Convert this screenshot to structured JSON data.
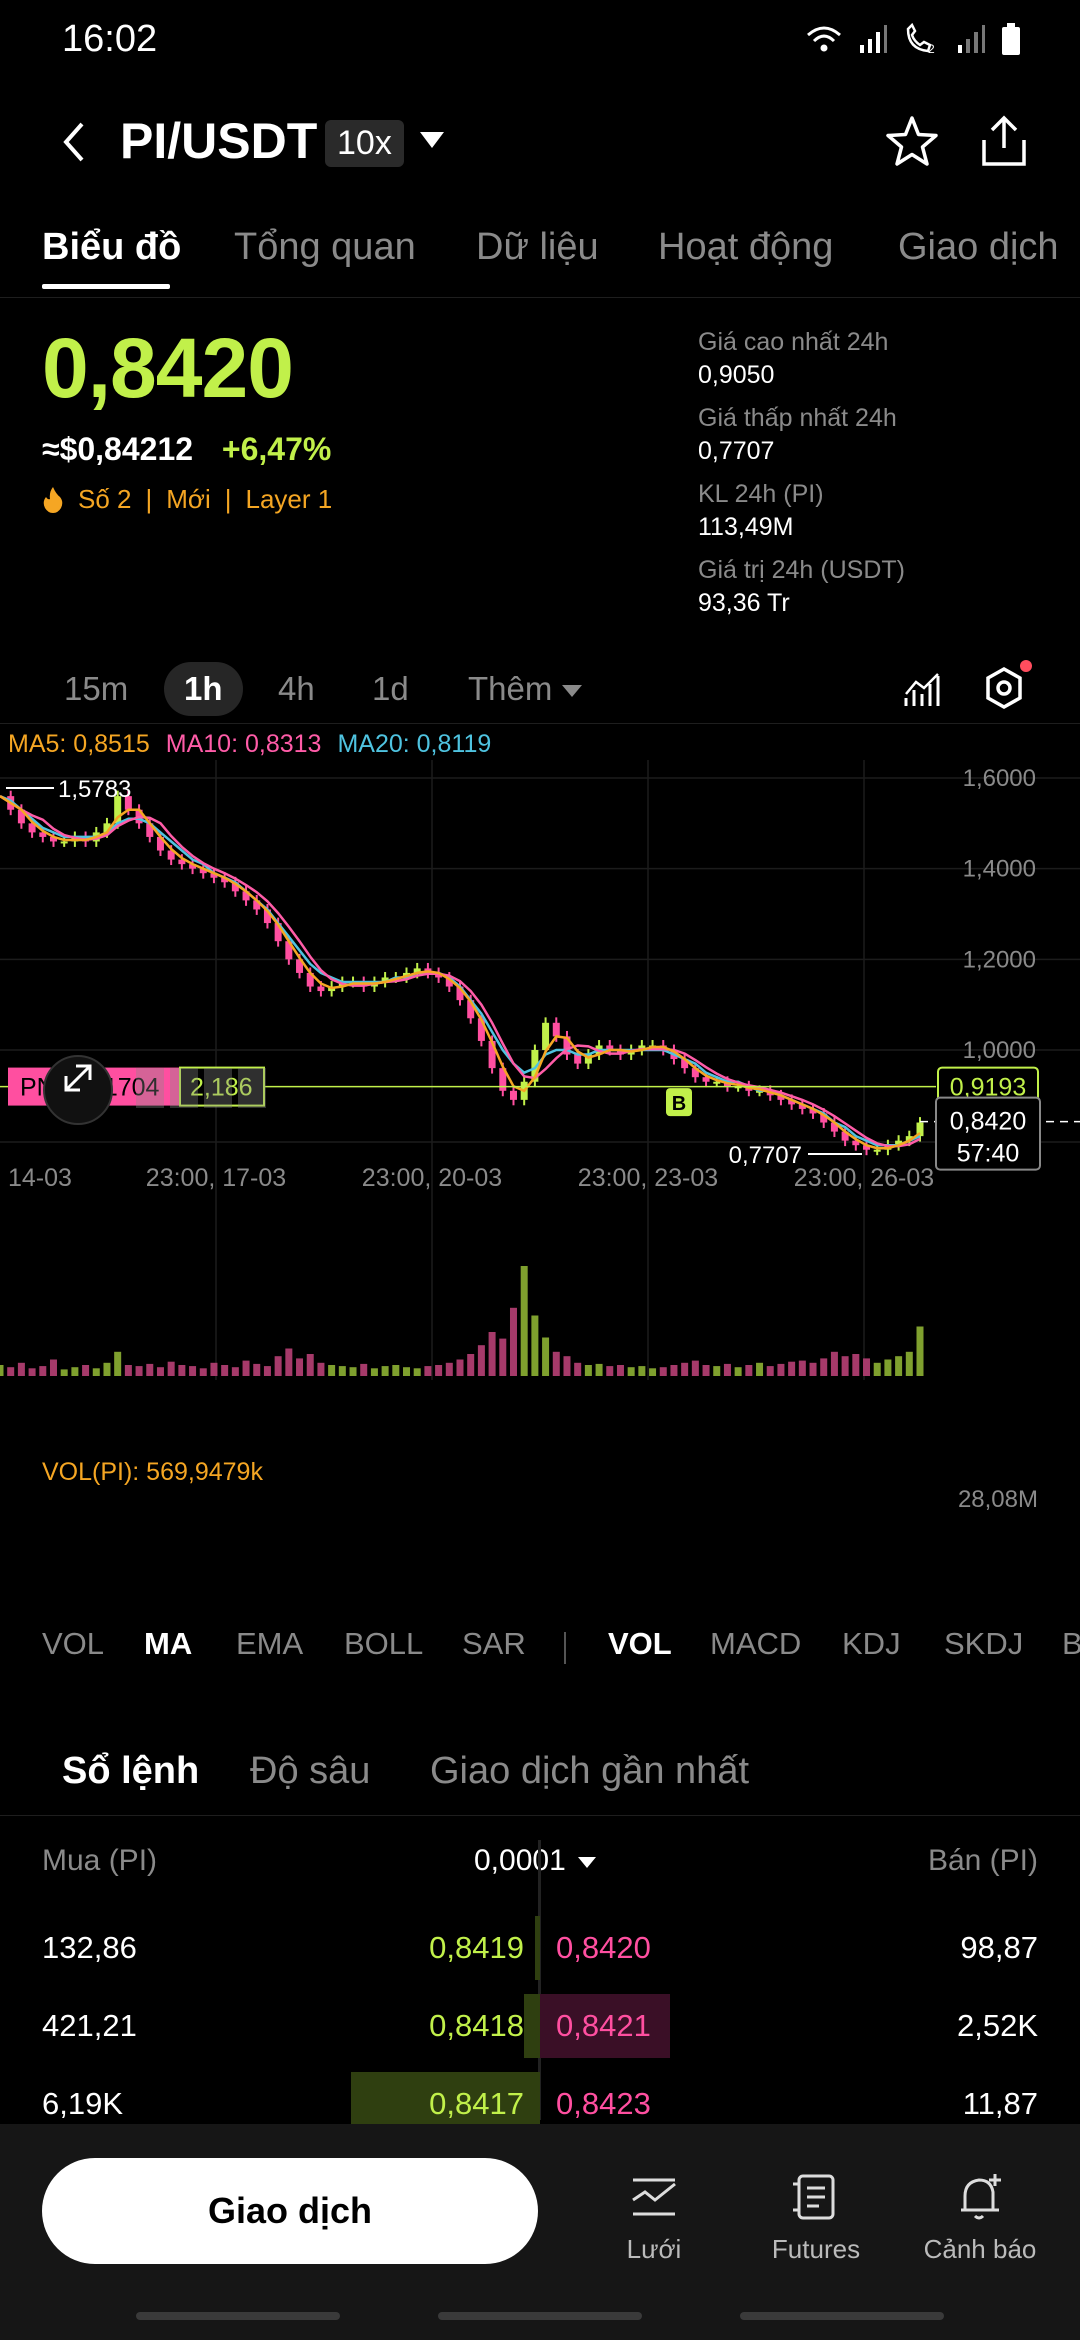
{
  "status": {
    "time": "16:02"
  },
  "header": {
    "pair": "PI/USDT",
    "leverage": "10x"
  },
  "tabs": [
    "Biểu đồ",
    "Tổng quan",
    "Dữ liệu",
    "Hoạt động",
    "Giao dịch"
  ],
  "price": {
    "last": "0,8420",
    "usd": "≈$0,84212",
    "change": "+6,47%",
    "tags": [
      "Số 2",
      "|",
      "Mới",
      "|",
      "Layer 1"
    ]
  },
  "stats": [
    {
      "label": "Giá cao nhất 24h",
      "value": "0,9050"
    },
    {
      "label": "Giá thấp nhất 24h",
      "value": "0,7707"
    },
    {
      "label": "KL 24h (PI)",
      "value": "113,49M"
    },
    {
      "label": "Giá trị 24h (USDT)",
      "value": "93,36 Tr"
    }
  ],
  "timeframes": [
    "15m",
    "1h",
    "4h",
    "1d",
    "Thêm"
  ],
  "ma": {
    "ma5": "MA5: 0,8515",
    "ma10": "MA10: 0,8313",
    "ma20": "MA20: 0,8119"
  },
  "chart_data": {
    "type": "line",
    "y_ticks": [
      "1,6000",
      "1,4000",
      "1,2000",
      "1,0000"
    ],
    "x_ticks": [
      "14-03",
      "23:00, 17-03",
      "23:00, 20-03",
      "23:00, 23-03",
      "23:00, 26-03"
    ],
    "ylim": [
      0.75,
      1.65
    ],
    "high_label": "1,5783",
    "low_label": "0,7707",
    "pnl_label": "PNL -0.1704",
    "pnl_value": "2,186",
    "order_line_price": "0.9193",
    "order_line_label": "0,9193",
    "current_price_label": "0,8420",
    "countdown": "57:40",
    "buy_marker": "B",
    "series": [
      {
        "name": "MA5",
        "color": "#f5a623"
      },
      {
        "name": "MA10",
        "color": "#ff5ca8"
      },
      {
        "name": "MA20",
        "color": "#4fc3e0"
      }
    ],
    "close": [
      1.56,
      1.53,
      1.5,
      1.48,
      1.47,
      1.46,
      1.46,
      1.47,
      1.46,
      1.48,
      1.5,
      1.56,
      1.53,
      1.5,
      1.47,
      1.44,
      1.42,
      1.41,
      1.4,
      1.39,
      1.38,
      1.37,
      1.35,
      1.33,
      1.31,
      1.28,
      1.24,
      1.2,
      1.17,
      1.14,
      1.13,
      1.14,
      1.15,
      1.15,
      1.14,
      1.15,
      1.16,
      1.16,
      1.17,
      1.18,
      1.17,
      1.16,
      1.14,
      1.11,
      1.07,
      1.02,
      0.96,
      0.91,
      0.89,
      0.93,
      1.0,
      1.06,
      1.03,
      0.99,
      0.97,
      0.99,
      1.01,
      1.0,
      0.99,
      1.0,
      1.01,
      1.01,
      1.0,
      0.98,
      0.96,
      0.94,
      0.93,
      0.93,
      0.92,
      0.92,
      0.91,
      0.91,
      0.9,
      0.89,
      0.88,
      0.87,
      0.86,
      0.84,
      0.82,
      0.8,
      0.79,
      0.78,
      0.78,
      0.79,
      0.8,
      0.81,
      0.84
    ],
    "ma20": [
      1.56,
      1.55,
      1.53,
      1.51,
      1.49,
      1.48,
      1.47,
      1.47,
      1.47,
      1.47,
      1.48,
      1.5,
      1.51,
      1.51,
      1.5,
      1.48,
      1.46,
      1.44,
      1.42,
      1.41,
      1.39,
      1.38,
      1.37,
      1.35,
      1.33,
      1.31,
      1.28,
      1.25,
      1.22,
      1.19,
      1.17,
      1.16,
      1.15,
      1.15,
      1.15,
      1.15,
      1.15,
      1.16,
      1.16,
      1.17,
      1.17,
      1.17,
      1.16,
      1.14,
      1.11,
      1.08,
      1.04,
      1.0,
      0.97,
      0.95,
      0.96,
      0.99,
      1.0,
      1.0,
      0.99,
      0.99,
      1.0,
      1.0,
      1.0,
      1.0,
      1.0,
      1.0,
      1.0,
      0.99,
      0.98,
      0.97,
      0.95,
      0.94,
      0.93,
      0.93,
      0.92,
      0.91,
      0.91,
      0.9,
      0.89,
      0.88,
      0.87,
      0.86,
      0.84,
      0.83,
      0.81,
      0.8,
      0.79,
      0.79,
      0.79,
      0.8,
      0.81
    ],
    "volume": [
      0.1,
      0.08,
      0.12,
      0.07,
      0.09,
      0.15,
      0.06,
      0.08,
      0.1,
      0.07,
      0.12,
      0.22,
      0.1,
      0.09,
      0.11,
      0.08,
      0.13,
      0.1,
      0.09,
      0.07,
      0.12,
      0.1,
      0.08,
      0.14,
      0.11,
      0.09,
      0.18,
      0.25,
      0.16,
      0.2,
      0.12,
      0.1,
      0.09,
      0.08,
      0.11,
      0.07,
      0.09,
      0.1,
      0.08,
      0.07,
      0.09,
      0.1,
      0.12,
      0.15,
      0.2,
      0.28,
      0.4,
      0.34,
      0.62,
      1.0,
      0.55,
      0.35,
      0.22,
      0.18,
      0.12,
      0.1,
      0.11,
      0.09,
      0.1,
      0.08,
      0.09,
      0.07,
      0.08,
      0.1,
      0.12,
      0.14,
      0.1,
      0.09,
      0.11,
      0.08,
      0.1,
      0.12,
      0.09,
      0.11,
      0.13,
      0.14,
      0.12,
      0.16,
      0.22,
      0.18,
      0.2,
      0.16,
      0.12,
      0.15,
      0.18,
      0.22,
      0.45
    ]
  },
  "volume": {
    "label": "VOL(PI): 569,9479k",
    "max": "28,08M"
  },
  "indicators_main": [
    "VOL",
    "MA",
    "EMA",
    "BOLL",
    "SAR"
  ],
  "indicators_sub": [
    "VOL",
    "MACD",
    "KDJ",
    "SKDJ",
    "B"
  ],
  "orderbook_tabs": [
    "Sổ lệnh",
    "Độ sâu",
    "Giao dịch gần nhất"
  ],
  "orderbook": {
    "buy_header": "Mua (PI)",
    "precision": "0,0001",
    "sell_header": "Bán (PI)",
    "rows": [
      {
        "bid_qty": "132,86",
        "bid_px": "0,8419",
        "ask_px": "0,8420",
        "ask_qty": "98,87",
        "bid_depth": 0.01,
        "ask_depth": 0.0
      },
      {
        "bid_qty": "421,21",
        "bid_px": "0,8418",
        "ask_px": "0,8421",
        "ask_qty": "2,52K",
        "bid_depth": 0.03,
        "ask_depth": 0.24
      },
      {
        "bid_qty": "6,19K",
        "bid_px": "0,8417",
        "ask_px": "0,8423",
        "ask_qty": "11,87",
        "bid_depth": 0.35,
        "ask_depth": 0.0
      }
    ]
  },
  "bottom_nav": {
    "trade": "Giao dịch",
    "grid": "Lưới",
    "futures": "Futures",
    "alert": "Cảnh báo"
  },
  "colors": {
    "up": "#c1f04a",
    "down": "#ff4fa0",
    "accent": "#f5a623"
  }
}
